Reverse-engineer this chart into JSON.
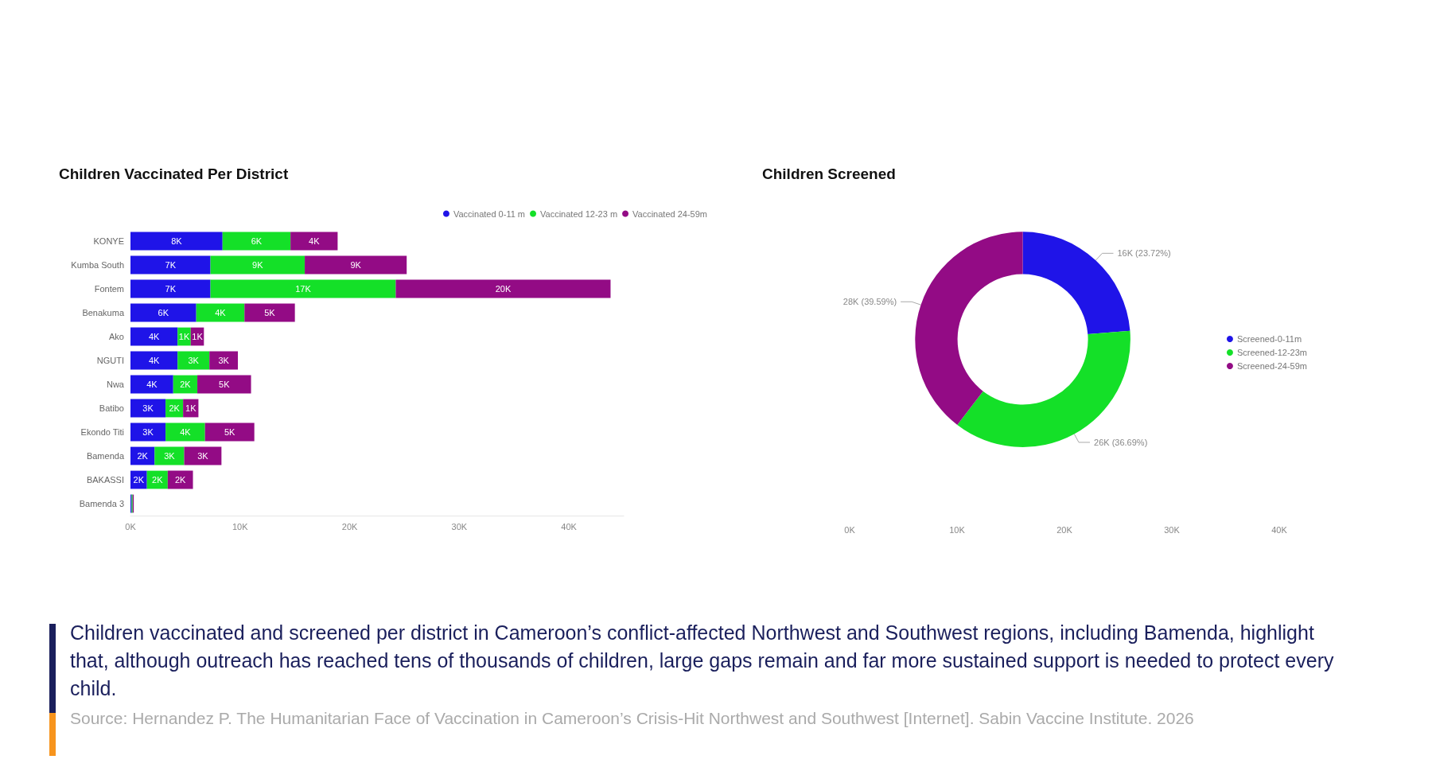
{
  "chart_data": [
    {
      "type": "bar",
      "orientation": "horizontal",
      "stacked": true,
      "title": "Children Vaccinated Per District",
      "categories": [
        "KONYE",
        "Kumba South",
        "Fontem",
        "Benakuma",
        "Ako",
        "NGUTI",
        "Nwa",
        "Batibo",
        "Ekondo Titi",
        "Bamenda",
        "BAKASSI",
        "Bamenda 3"
      ],
      "series": [
        {
          "name": "Vaccinated 0-11 m",
          "color": "#1f14e8",
          "values": [
            8.4,
            7.3,
            7.3,
            6.0,
            4.3,
            4.3,
            3.9,
            3.2,
            3.2,
            2.2,
            1.5,
            0.1
          ],
          "value_labels": [
            "8K",
            "7K",
            "7K",
            "6K",
            "4K",
            "4K",
            "4K",
            "3K",
            "3K",
            "2K",
            "2K",
            null
          ]
        },
        {
          "name": "Vaccinated 12-23 m",
          "color": "#14e028",
          "values": [
            6.2,
            8.6,
            16.9,
            4.4,
            1.2,
            2.9,
            2.2,
            1.6,
            3.6,
            2.7,
            1.9,
            0.1
          ],
          "value_labels": [
            "6K",
            "9K",
            "17K",
            "4K",
            "1K",
            "3K",
            "2K",
            "2K",
            "4K",
            "3K",
            "2K",
            null
          ]
        },
        {
          "name": "Vaccinated 24-59m",
          "color": "#930b85",
          "values": [
            4.3,
            9.3,
            19.6,
            4.6,
            1.2,
            2.6,
            4.9,
            1.4,
            4.5,
            3.4,
            2.3,
            0.1
          ],
          "value_labels": [
            "4K",
            "9K",
            "20K",
            "5K",
            "1K",
            "3K",
            "5K",
            "1K",
            "5K",
            "3K",
            "2K",
            null
          ]
        }
      ],
      "xlim": [
        0,
        45
      ],
      "xticks": [
        {
          "value": 0,
          "label": "0K"
        },
        {
          "value": 10,
          "label": "10K"
        },
        {
          "value": 20,
          "label": "20K"
        },
        {
          "value": 30,
          "label": "30K"
        },
        {
          "value": 40,
          "label": "40K"
        }
      ],
      "legend": "top right",
      "grid": false,
      "marker": "circle"
    },
    {
      "type": "donut",
      "title": "Children Screened",
      "categories": [
        "Screened-0-11m",
        "Screened-12-23m",
        "Screened-24-59m"
      ],
      "values": [
        23.72,
        36.69,
        39.59
      ],
      "colors": [
        "#1f14e8",
        "#14e028",
        "#930b85"
      ],
      "value_labels": [
        "16K (23.72%)",
        "26K (36.69%)",
        "28K (39.59%)"
      ],
      "legend": "right",
      "marker": "circle",
      "annotations": [
        "0K",
        "10K",
        "20K",
        "30K",
        "40K"
      ]
    },
    {
      "type": "other",
      "annotations": [
        "Children vaccinated and screened per district in Cameroon’s conflict-affected Northwest and Southwest regions, including Bamenda, highlight that, although outreach has reached tens of thousands of children, large gaps remain and far more sustained support is needed to protect every child.",
        "Source: Hernandez P. The Humanitarian Face of Vaccination in Cameroon’s Crisis-Hit Northwest and Southwest [Internet]. Sabin Vaccine Institute. 2026"
      ]
    }
  ]
}
